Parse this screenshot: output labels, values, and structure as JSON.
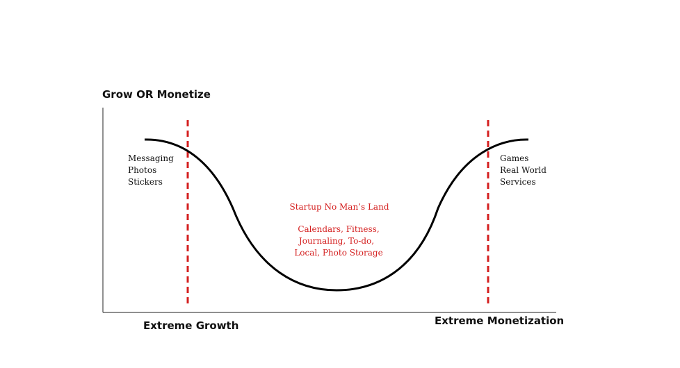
{
  "title": "Grow OR Monetize",
  "axis": {
    "left_label": "Extreme Growth",
    "right_label": "Extreme Monetization"
  },
  "left_group": {
    "items": [
      "Messaging",
      "Photos",
      "Stickers"
    ]
  },
  "right_group": {
    "items": [
      "Games",
      "Real World",
      "Services"
    ]
  },
  "middle": {
    "title": "Startup No Man’s Land",
    "lines": [
      "Calendars, Fitness,",
      "Journaling, To-do,",
      "Local, Photo Storage"
    ]
  }
}
